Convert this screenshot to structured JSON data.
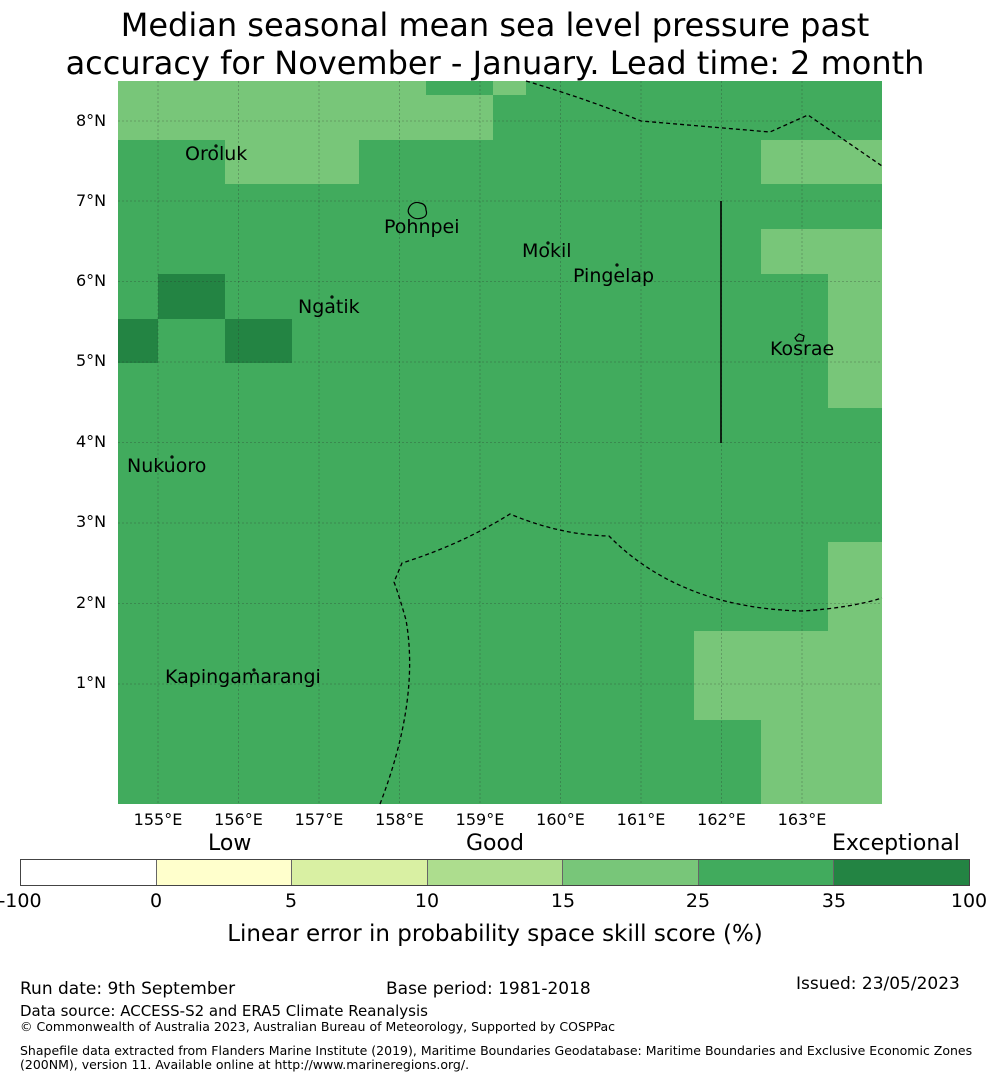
{
  "title": {
    "line1": "Median seasonal mean sea level pressure past",
    "line2": "accuracy for November - January. Lead time: 2 month"
  },
  "map": {
    "lon_range": [
      154.5,
      164.0
    ],
    "lat_range": [
      -0.5,
      8.5
    ],
    "lat_ticks": [
      "8°N",
      "7°N",
      "6°N",
      "5°N",
      "4°N",
      "3°N",
      "2°N",
      "1°N"
    ],
    "lon_ticks": [
      "155°E",
      "156°E",
      "157°E",
      "158°E",
      "159°E",
      "160°E",
      "161°E",
      "162°E",
      "163°E"
    ],
    "places": [
      {
        "name": "Oroluk"
      },
      {
        "name": "Pohnpei"
      },
      {
        "name": "Mokil"
      },
      {
        "name": "Pingelap"
      },
      {
        "name": "Ngatik"
      },
      {
        "name": "Kosrae"
      },
      {
        "name": "Nukuoro"
      },
      {
        "name": "Kapingamarangi"
      }
    ],
    "category_colors": {
      "15-25": "#78c679",
      "25-35": "#41ab5d",
      "35-100": "#238443"
    }
  },
  "legend": {
    "categories": [
      "Low",
      "Good",
      "Exceptional"
    ],
    "colors": [
      "#ffffff",
      "#ffffcc",
      "#d9f0a3",
      "#addd8e",
      "#78c679",
      "#41ab5d",
      "#238443"
    ],
    "ticks": [
      "-100",
      "0",
      "5",
      "10",
      "15",
      "25",
      "35",
      "100"
    ],
    "label": "Linear error in probability space skill score (%)"
  },
  "footer": {
    "run_date": "Run date: 9th September",
    "base_period": "Base period: 1981-2018",
    "issued": "Issued: 23/05/2023",
    "data_source": "Data source: ACCESS-S2 and ERA5 Climate Reanalysis",
    "copyright": "© Commonwealth of Australia 2023, Australian Bureau of Meteorology, Supported by COSPPac",
    "shapefile_1": "Shapefile data extracted from Flanders Marine Institute (2019), Maritime Boundaries Geodatabase: Maritime Boundaries and Exclusive Economic Zones",
    "shapefile_2": "(200NM), version 11. Available online at http://www.marineregions.org/."
  }
}
